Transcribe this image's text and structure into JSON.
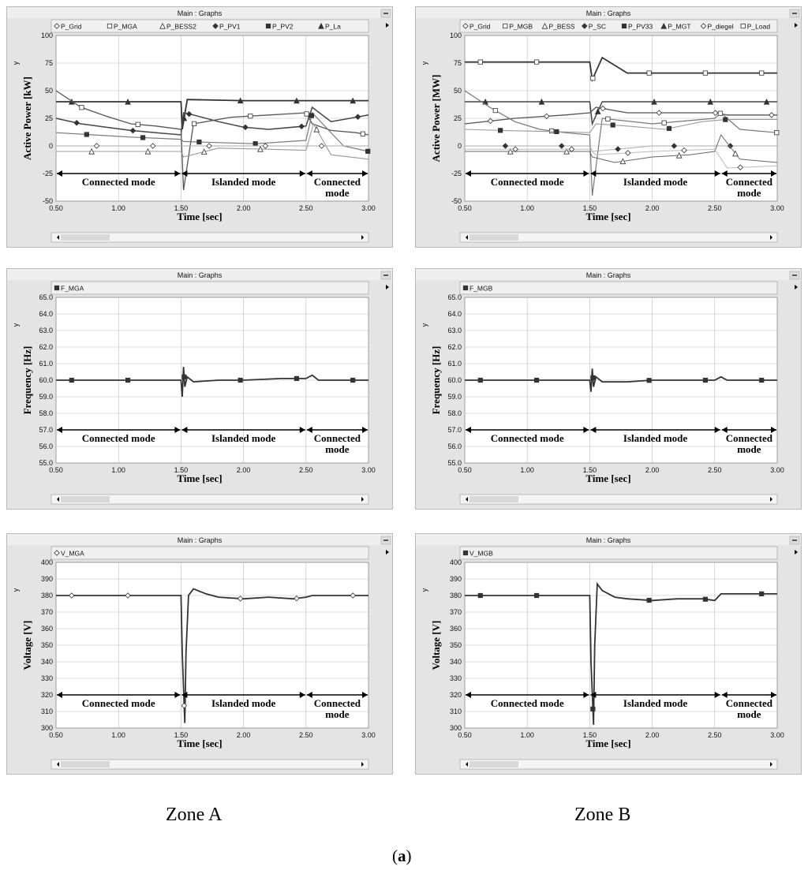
{
  "window_title": "Main : Graphs",
  "modes": {
    "connected": "Connected mode",
    "islanded": "Islanded mode",
    "connected_split": [
      "Connected",
      "mode"
    ]
  },
  "chart_data": [
    {
      "id": "pA",
      "zone": "Zone A",
      "type": "line",
      "legend": [
        "P_Grid",
        "P_MGA",
        "P_BESS2",
        "P_PV1",
        "P_PV2",
        "P_La"
      ],
      "legend_markers": [
        "diamond-open",
        "square-open",
        "triangle-open",
        "diamond",
        "square",
        "triangle"
      ],
      "ylabel": "Active Power [kW]",
      "y_axis_tag": "y",
      "xlabel": "Time [sec]",
      "xlim": [
        0.5,
        3.0
      ],
      "ylim": [
        -50,
        100
      ],
      "xticks": [
        "0.50",
        "1.00",
        "1.50",
        "2.00",
        "2.50",
        "3.00"
      ],
      "yticks": [
        "100",
        "75",
        "50",
        "25",
        "0",
        "-25",
        "-50"
      ],
      "series": [
        {
          "name": "P_La",
          "x": [
            0.5,
            1.5,
            1.51,
            1.55,
            2.0,
            2.5,
            3.0
          ],
          "values": [
            40,
            40,
            15,
            42,
            41,
            41,
            41
          ]
        },
        {
          "name": "P_PV1",
          "x": [
            0.5,
            0.7,
            0.9,
            1.1,
            1.3,
            1.5,
            1.52,
            1.6,
            1.8,
            2.0,
            2.2,
            2.5,
            2.55,
            2.7,
            2.9,
            3.0
          ],
          "values": [
            25,
            20,
            17,
            14,
            12,
            10,
            30,
            28,
            22,
            17,
            15,
            18,
            35,
            22,
            26,
            28
          ]
        },
        {
          "name": "P_MGA",
          "x": [
            0.5,
            0.7,
            0.9,
            1.1,
            1.3,
            1.5,
            1.52,
            1.6,
            1.9,
            2.2,
            2.5,
            2.55,
            2.7,
            2.9,
            3.0
          ],
          "values": [
            50,
            35,
            27,
            20,
            18,
            15,
            -40,
            20,
            26,
            28,
            30,
            20,
            14,
            12,
            10
          ]
        },
        {
          "name": "P_PV2",
          "x": [
            0.5,
            0.8,
            1.1,
            1.5,
            1.52,
            1.8,
            2.1,
            2.5,
            2.55,
            2.8,
            3.0
          ],
          "values": [
            12,
            10,
            8,
            6,
            4,
            3,
            2,
            5,
            30,
            0,
            -5
          ]
        },
        {
          "name": "P_BESS2",
          "x": [
            0.5,
            1.0,
            1.5,
            1.52,
            1.8,
            2.2,
            2.5,
            2.56,
            2.7,
            3.0
          ],
          "values": [
            -5,
            -5,
            -5,
            -10,
            -2,
            -3,
            -4,
            20,
            -8,
            -12
          ]
        },
        {
          "name": "P_Grid",
          "x": [
            0.5,
            1.0,
            1.5,
            1.55,
            2.0,
            2.5,
            3.0
          ],
          "values": [
            0,
            0,
            0,
            0,
            0,
            0,
            0
          ]
        }
      ],
      "mode_y": -25,
      "mode_x": [
        0.5,
        1.5,
        2.5,
        3.0
      ]
    },
    {
      "id": "pB",
      "zone": "Zone B",
      "type": "line",
      "legend": [
        "P_Grid",
        "P_MGB",
        "P_BESS",
        "P_SC",
        "P_PV33",
        "P_MGT",
        "P_diegel",
        "P_Load"
      ],
      "legend_markers": [
        "diamond-open",
        "square-open",
        "triangle-open",
        "diamond",
        "square",
        "triangle",
        "diamond-open",
        "square-open"
      ],
      "ylabel": "Active Power [MW]",
      "y_axis_tag": "y",
      "xlabel": "Time [sec]",
      "xlim": [
        0.5,
        3.0
      ],
      "ylim": [
        -50,
        100
      ],
      "xticks": [
        "0.50",
        "1.00",
        "1.50",
        "2.00",
        "2.50",
        "3.00"
      ],
      "yticks": [
        "100",
        "75",
        "50",
        "25",
        "0",
        "-25",
        "-50"
      ],
      "series": [
        {
          "name": "P_Load",
          "x": [
            0.5,
            1.5,
            1.52,
            1.6,
            1.8,
            2.0,
            3.0
          ],
          "values": [
            76,
            76,
            60,
            80,
            66,
            66,
            66
          ]
        },
        {
          "name": "P_MGT",
          "x": [
            0.5,
            1.5,
            1.52,
            1.6,
            3.0
          ],
          "values": [
            40,
            40,
            20,
            40,
            40
          ]
        },
        {
          "name": "P_diegel",
          "x": [
            0.5,
            0.9,
            1.3,
            1.5,
            1.55,
            1.8,
            2.2,
            2.5,
            2.6,
            3.0
          ],
          "values": [
            20,
            25,
            28,
            30,
            35,
            30,
            30,
            30,
            28,
            28
          ]
        },
        {
          "name": "P_MGB",
          "x": [
            0.5,
            0.7,
            0.9,
            1.1,
            1.3,
            1.5,
            1.52,
            1.6,
            2.0,
            2.5,
            2.55,
            2.7,
            3.0
          ],
          "values": [
            50,
            35,
            22,
            15,
            12,
            10,
            -45,
            25,
            20,
            25,
            30,
            15,
            12
          ]
        },
        {
          "name": "P_PV33",
          "x": [
            0.5,
            0.8,
            1.2,
            1.5,
            1.55,
            1.8,
            2.1,
            2.4,
            2.6,
            3.0
          ],
          "values": [
            15,
            14,
            13,
            12,
            20,
            18,
            15,
            22,
            24,
            24
          ]
        },
        {
          "name": "P_SC",
          "x": [
            0.5,
            1.0,
            1.5,
            1.52,
            2.0,
            2.5,
            3.0
          ],
          "values": [
            0,
            0,
            0,
            -5,
            0,
            0,
            0
          ]
        },
        {
          "name": "P_BESS",
          "x": [
            0.5,
            1.0,
            1.5,
            1.52,
            1.7,
            2.0,
            2.3,
            2.5,
            2.55,
            2.7,
            3.0
          ],
          "values": [
            -5,
            -5,
            -5,
            -10,
            -15,
            -10,
            -8,
            -5,
            10,
            -12,
            -15
          ]
        },
        {
          "name": "P_Grid",
          "x": [
            0.5,
            1.0,
            1.5,
            1.55,
            2.0,
            2.5,
            2.6,
            3.0
          ],
          "values": [
            -3,
            -3,
            -3,
            -8,
            -5,
            -3,
            -20,
            -18
          ]
        }
      ],
      "mode_y": -25,
      "mode_x": [
        0.5,
        1.5,
        2.55,
        3.0
      ]
    },
    {
      "id": "fA",
      "zone": "Zone A",
      "type": "line",
      "legend": [
        "F_MGA"
      ],
      "legend_markers": [
        "square"
      ],
      "ylabel": "Frequency [Hz]",
      "y_axis_tag": "y",
      "xlabel": "Time [sec]",
      "xlim": [
        0.5,
        3.0
      ],
      "ylim": [
        55,
        65
      ],
      "xticks": [
        "0.50",
        "1.00",
        "1.50",
        "2.00",
        "2.50",
        "3.00"
      ],
      "yticks": [
        "65.0",
        "64.0",
        "63.0",
        "62.0",
        "61.0",
        "60.0",
        "59.0",
        "58.0",
        "57.0",
        "56.0",
        "55.0"
      ],
      "series": [
        {
          "name": "F_MGA",
          "x": [
            0.5,
            1.5,
            1.51,
            1.52,
            1.53,
            1.55,
            1.6,
            1.8,
            2.0,
            2.3,
            2.5,
            2.55,
            2.6,
            3.0
          ],
          "values": [
            60,
            60,
            59.0,
            60.8,
            59.6,
            60.2,
            59.9,
            60.0,
            60.0,
            60.1,
            60.1,
            60.3,
            60.0,
            60.0
          ]
        }
      ],
      "mode_y": 57.0,
      "mode_x": [
        0.5,
        1.5,
        2.5,
        3.0
      ]
    },
    {
      "id": "fB",
      "zone": "Zone B",
      "type": "line",
      "legend": [
        "F_MGB"
      ],
      "legend_markers": [
        "square"
      ],
      "ylabel": "Frequency [Hz]",
      "y_axis_tag": "y",
      "xlabel": "Time [sec]",
      "xlim": [
        0.5,
        3.0
      ],
      "ylim": [
        55,
        65
      ],
      "xticks": [
        "0.50",
        "1.00",
        "1.50",
        "2.00",
        "2.50",
        "3.00"
      ],
      "yticks": [
        "65.0",
        "64.0",
        "63.0",
        "62.0",
        "61.0",
        "60.0",
        "59.0",
        "58.0",
        "57.0",
        "56.0",
        "55.0"
      ],
      "series": [
        {
          "name": "F_MGB",
          "x": [
            0.5,
            1.5,
            1.51,
            1.52,
            1.53,
            1.55,
            1.6,
            1.8,
            2.0,
            2.3,
            2.5,
            2.55,
            2.6,
            3.0
          ],
          "values": [
            60,
            60,
            59.3,
            60.7,
            59.6,
            60.2,
            59.9,
            59.9,
            60.0,
            60.0,
            60.0,
            60.2,
            60.0,
            60.0
          ]
        }
      ],
      "mode_y": 57.0,
      "mode_x": [
        0.5,
        1.5,
        2.55,
        3.0
      ]
    },
    {
      "id": "vA",
      "zone": "Zone A",
      "type": "line",
      "legend": [
        "V_MGA"
      ],
      "legend_markers": [
        "diamond-open"
      ],
      "ylabel": "Voltage [V]",
      "y_axis_tag": "y",
      "xlabel": "Time [sec]",
      "xlim": [
        0.5,
        3.0
      ],
      "ylim": [
        300,
        400
      ],
      "xticks": [
        "0.50",
        "1.00",
        "1.50",
        "2.00",
        "2.50",
        "3.00"
      ],
      "yticks": [
        "400",
        "390",
        "380",
        "370",
        "360",
        "350",
        "340",
        "330",
        "320",
        "310",
        "300"
      ],
      "series": [
        {
          "name": "V_MGA",
          "x": [
            0.5,
            1.5,
            1.51,
            1.53,
            1.54,
            1.56,
            1.6,
            1.7,
            1.8,
            2.0,
            2.2,
            2.4,
            2.5,
            2.55,
            3.0
          ],
          "values": [
            380,
            380,
            345,
            303,
            345,
            380,
            384,
            381,
            379,
            378,
            379,
            378,
            379,
            380,
            380
          ]
        }
      ],
      "mode_y": 320,
      "mode_x": [
        0.5,
        1.5,
        2.5,
        3.0
      ]
    },
    {
      "id": "vB",
      "zone": "Zone B",
      "type": "line",
      "legend": [
        "V_MGB"
      ],
      "legend_markers": [
        "square"
      ],
      "ylabel": "Voltage [V]",
      "y_axis_tag": "y",
      "xlabel": "Time [sec]",
      "xlim": [
        0.5,
        3.0
      ],
      "ylim": [
        300,
        400
      ],
      "xticks": [
        "0.50",
        "1.00",
        "1.50",
        "2.00",
        "2.50",
        "3.00"
      ],
      "yticks": [
        "400",
        "390",
        "380",
        "370",
        "360",
        "350",
        "340",
        "330",
        "320",
        "310",
        "300"
      ],
      "series": [
        {
          "name": "V_MGB",
          "x": [
            0.5,
            1.5,
            1.51,
            1.53,
            1.54,
            1.56,
            1.6,
            1.7,
            1.8,
            2.0,
            2.2,
            2.4,
            2.5,
            2.55,
            3.0
          ],
          "values": [
            380,
            380,
            340,
            302,
            350,
            387,
            383,
            379,
            378,
            377,
            378,
            378,
            377,
            381,
            381
          ]
        }
      ],
      "mode_y": 320,
      "mode_x": [
        0.5,
        1.5,
        2.55,
        3.0
      ]
    }
  ],
  "zone_labels": {
    "left": "Zone A",
    "right": "Zone B"
  },
  "figure_label": {
    "open": "(",
    "letter": "a",
    "close": ")"
  }
}
